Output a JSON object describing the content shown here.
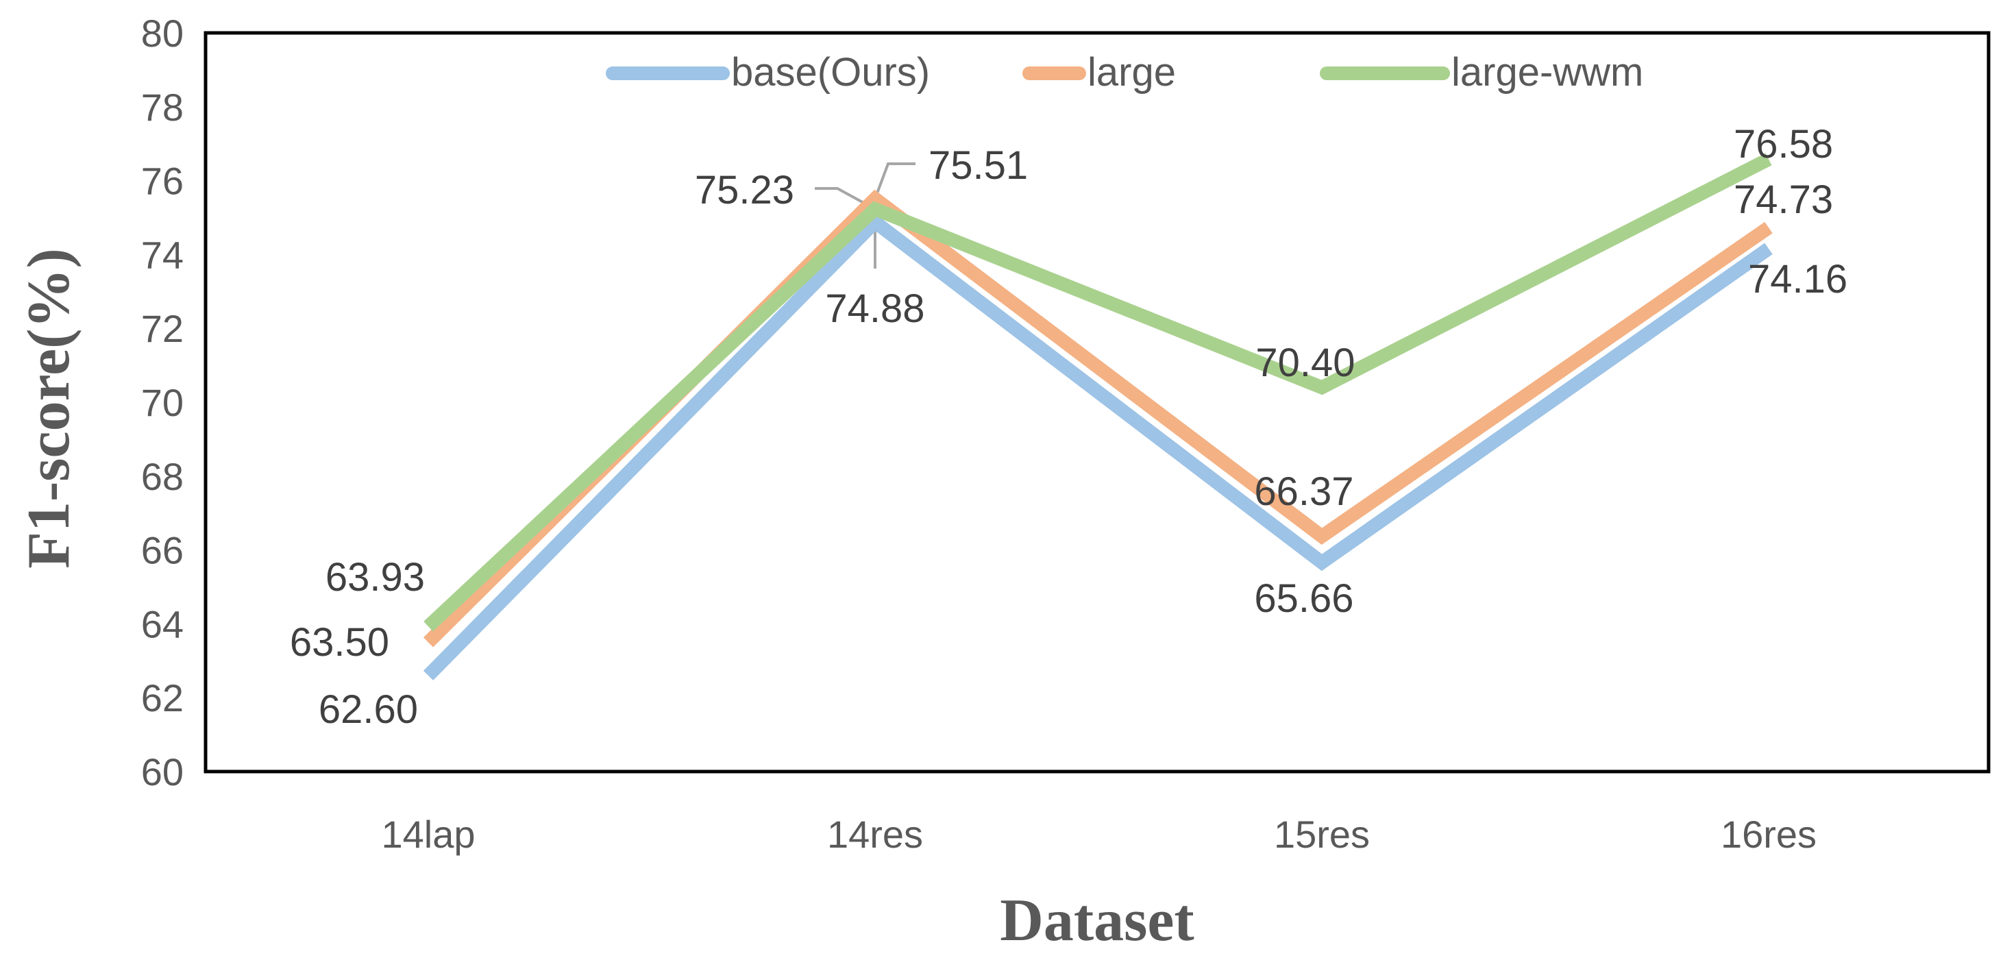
{
  "chart_data": {
    "type": "line",
    "title": "",
    "xlabel": "Dataset",
    "ylabel": "F1-score(%)",
    "categories": [
      "14lap",
      "14res",
      "15res",
      "16res"
    ],
    "ylim": [
      60,
      80
    ],
    "yticks": [
      60,
      62,
      64,
      66,
      68,
      70,
      72,
      74,
      76,
      78,
      80
    ],
    "grid": false,
    "legend_position": "top-center",
    "series": [
      {
        "name": "base(Ours)",
        "color": "#9DC3E6",
        "values": [
          62.6,
          74.88,
          65.66,
          74.16
        ],
        "labels": [
          "62.60",
          "74.88",
          "65.66",
          "74.16"
        ]
      },
      {
        "name": "large",
        "color": "#F4B183",
        "values": [
          63.5,
          75.51,
          66.37,
          74.73
        ],
        "labels": [
          "63.50",
          "75.51",
          "66.37",
          "74.73"
        ]
      },
      {
        "name": "large-wwm",
        "color": "#A9D18E",
        "values": [
          63.93,
          75.23,
          70.4,
          76.58
        ],
        "labels": [
          "63.93",
          "75.23",
          "70.40",
          "76.58"
        ]
      }
    ]
  }
}
